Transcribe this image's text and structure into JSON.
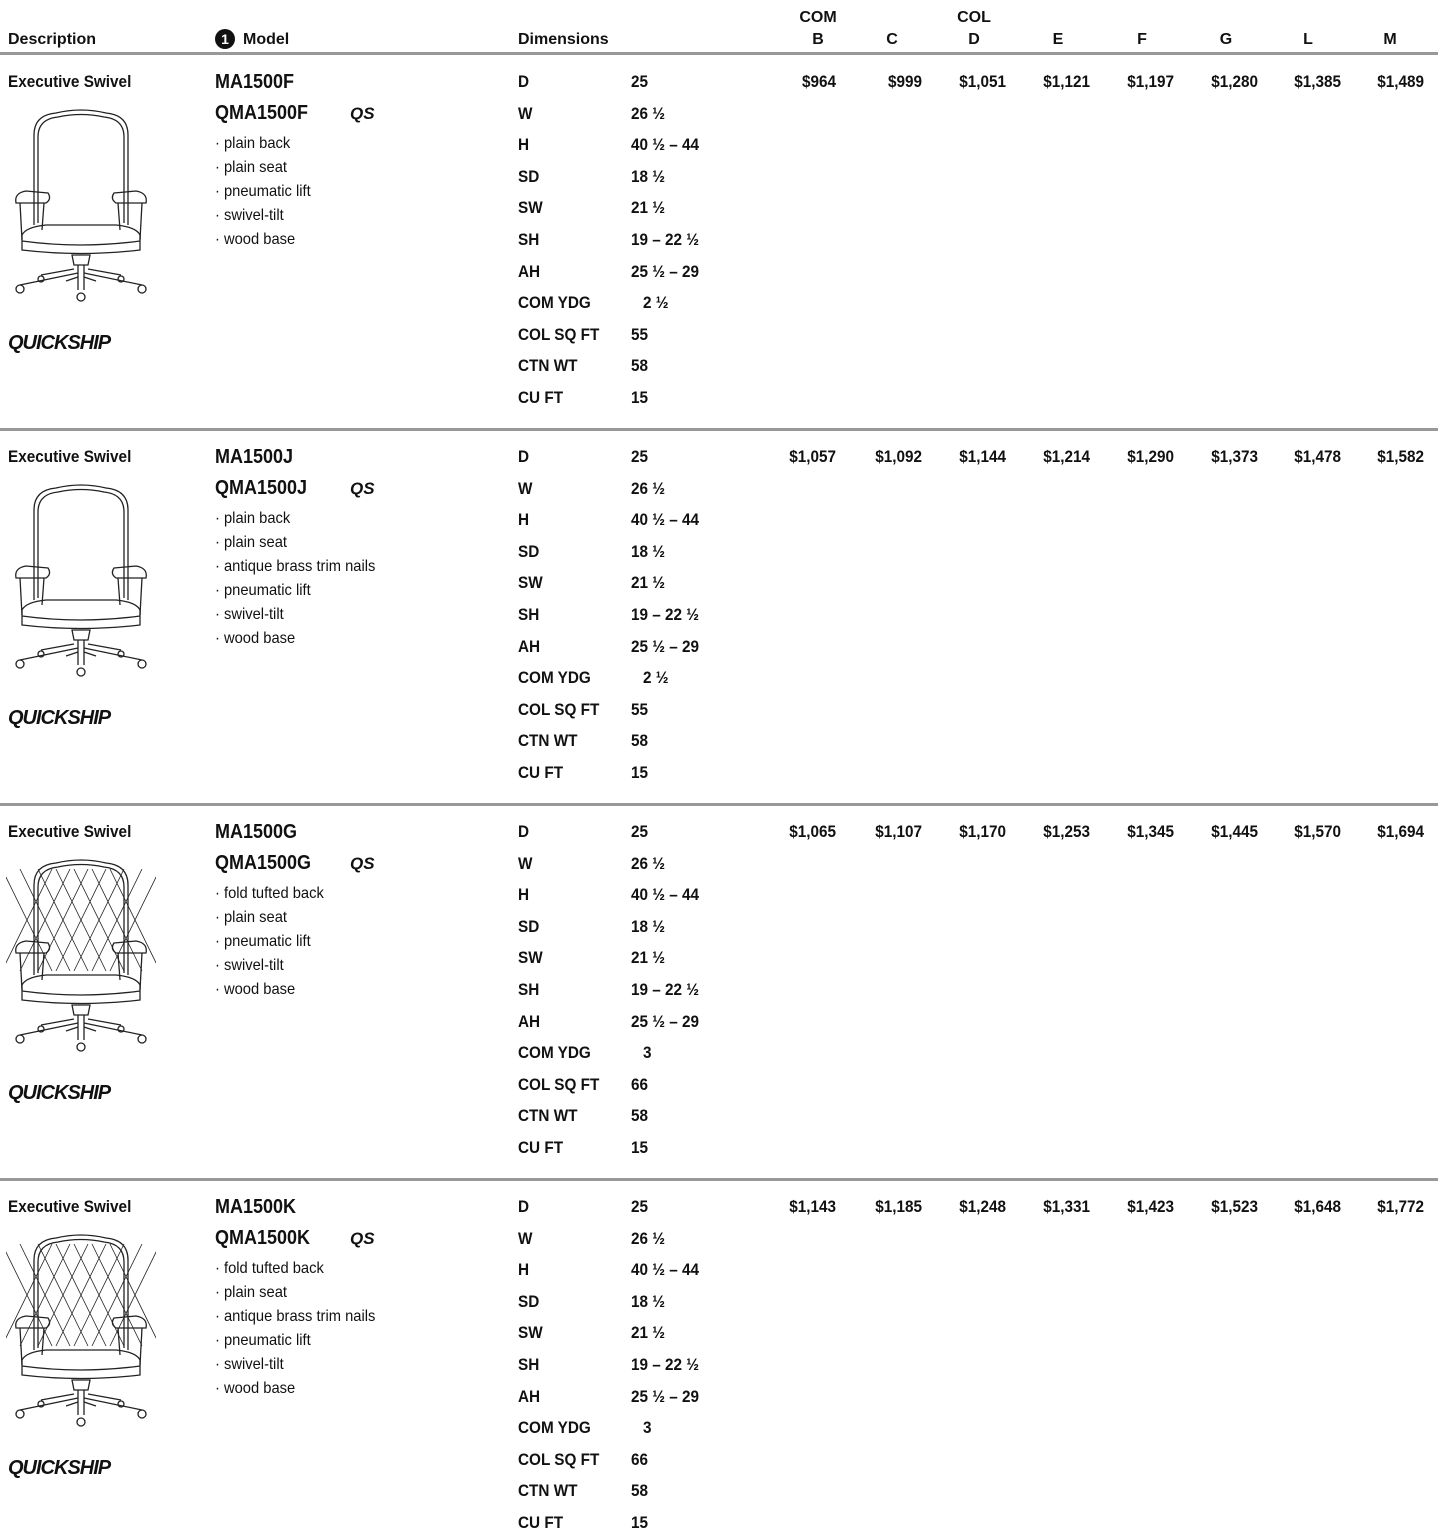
{
  "header": {
    "description": "Description",
    "model_marker": "1",
    "model": "Model",
    "dimensions": "Dimensions",
    "price_columns": [
      {
        "top": "COM",
        "label": "B"
      },
      {
        "label": "C"
      },
      {
        "top": "COL",
        "label": "D"
      },
      {
        "label": "E"
      },
      {
        "label": "F"
      },
      {
        "label": "G"
      },
      {
        "label": "L"
      },
      {
        "label": "M"
      }
    ]
  },
  "products": [
    {
      "description": "Executive Swivel",
      "model": "MA1500F",
      "quickship_model": "QMA1500F",
      "qs_mark": "QS",
      "quickship": "QUICKSHIP",
      "features": [
        "· plain back",
        "· plain seat",
        "· pneumatic lift",
        "· swivel-tilt",
        "· wood base"
      ],
      "dimensions": [
        [
          "D",
          "25"
        ],
        [
          "W",
          "26 ½"
        ],
        [
          "H",
          "40 ½ – 44"
        ],
        [
          "SD",
          "18 ½"
        ],
        [
          "SW",
          "21 ½"
        ],
        [
          "SH",
          "19 – 22 ½"
        ],
        [
          "AH",
          "25 ½ – 29"
        ],
        [
          "COM YDG",
          "2 ½"
        ],
        [
          "COL SQ FT",
          "55"
        ],
        [
          "CTN WT",
          "58"
        ],
        [
          "CU FT",
          "15"
        ]
      ],
      "prices": [
        "$964",
        "$999",
        "$1,051",
        "$1,121",
        "$1,197",
        "$1,280",
        "$1,385",
        "$1,489"
      ]
    },
    {
      "description": "Executive Swivel",
      "model": "MA1500J",
      "quickship_model": "QMA1500J",
      "qs_mark": "QS",
      "quickship": "QUICKSHIP",
      "features": [
        "· plain back",
        "· plain seat",
        "· antique brass trim nails",
        "· pneumatic lift",
        "· swivel-tilt",
        "· wood base"
      ],
      "dimensions": [
        [
          "D",
          "25"
        ],
        [
          "W",
          "26 ½"
        ],
        [
          "H",
          "40 ½ – 44"
        ],
        [
          "SD",
          "18 ½"
        ],
        [
          "SW",
          "21 ½"
        ],
        [
          "SH",
          "19 – 22 ½"
        ],
        [
          "AH",
          "25 ½ – 29"
        ],
        [
          "COM YDG",
          "2 ½"
        ],
        [
          "COL SQ FT",
          "55"
        ],
        [
          "CTN WT",
          "58"
        ],
        [
          "CU FT",
          "15"
        ]
      ],
      "prices": [
        "$1,057",
        "$1,092",
        "$1,144",
        "$1,214",
        "$1,290",
        "$1,373",
        "$1,478",
        "$1,582"
      ]
    },
    {
      "description": "Executive Swivel",
      "model": "MA1500G",
      "quickship_model": "QMA1500G",
      "qs_mark": "QS",
      "quickship": "QUICKSHIP",
      "features": [
        "· fold tufted back",
        "· plain seat",
        "· pneumatic lift",
        "· swivel-tilt",
        "· wood base"
      ],
      "dimensions": [
        [
          "D",
          "25"
        ],
        [
          "W",
          "26 ½"
        ],
        [
          "H",
          "40 ½ – 44"
        ],
        [
          "SD",
          "18 ½"
        ],
        [
          "SW",
          "21 ½"
        ],
        [
          "SH",
          "19 – 22 ½"
        ],
        [
          "AH",
          "25 ½ – 29"
        ],
        [
          "COM YDG",
          "3"
        ],
        [
          "COL SQ FT",
          "66"
        ],
        [
          "CTN WT",
          "58"
        ],
        [
          "CU FT",
          "15"
        ]
      ],
      "prices": [
        "$1,065",
        "$1,107",
        "$1,170",
        "$1,253",
        "$1,345",
        "$1,445",
        "$1,570",
        "$1,694"
      ]
    },
    {
      "description": "Executive Swivel",
      "model": "MA1500K",
      "quickship_model": "QMA1500K",
      "qs_mark": "QS",
      "quickship": "QUICKSHIP",
      "features": [
        "· fold tufted back",
        "· plain seat",
        "· antique brass trim nails",
        "· pneumatic lift",
        "· swivel-tilt",
        "· wood base"
      ],
      "dimensions": [
        [
          "D",
          "25"
        ],
        [
          "W",
          "26 ½"
        ],
        [
          "H",
          "40 ½ – 44"
        ],
        [
          "SD",
          "18 ½"
        ],
        [
          "SW",
          "21 ½"
        ],
        [
          "SH",
          "19 – 22 ½"
        ],
        [
          "AH",
          "25 ½ – 29"
        ],
        [
          "COM YDG",
          "3"
        ],
        [
          "COL SQ FT",
          "66"
        ],
        [
          "CTN WT",
          "58"
        ],
        [
          "CU FT",
          "15"
        ]
      ],
      "prices": [
        "$1,143",
        "$1,185",
        "$1,248",
        "$1,331",
        "$1,423",
        "$1,523",
        "$1,648",
        "$1,772"
      ]
    }
  ]
}
